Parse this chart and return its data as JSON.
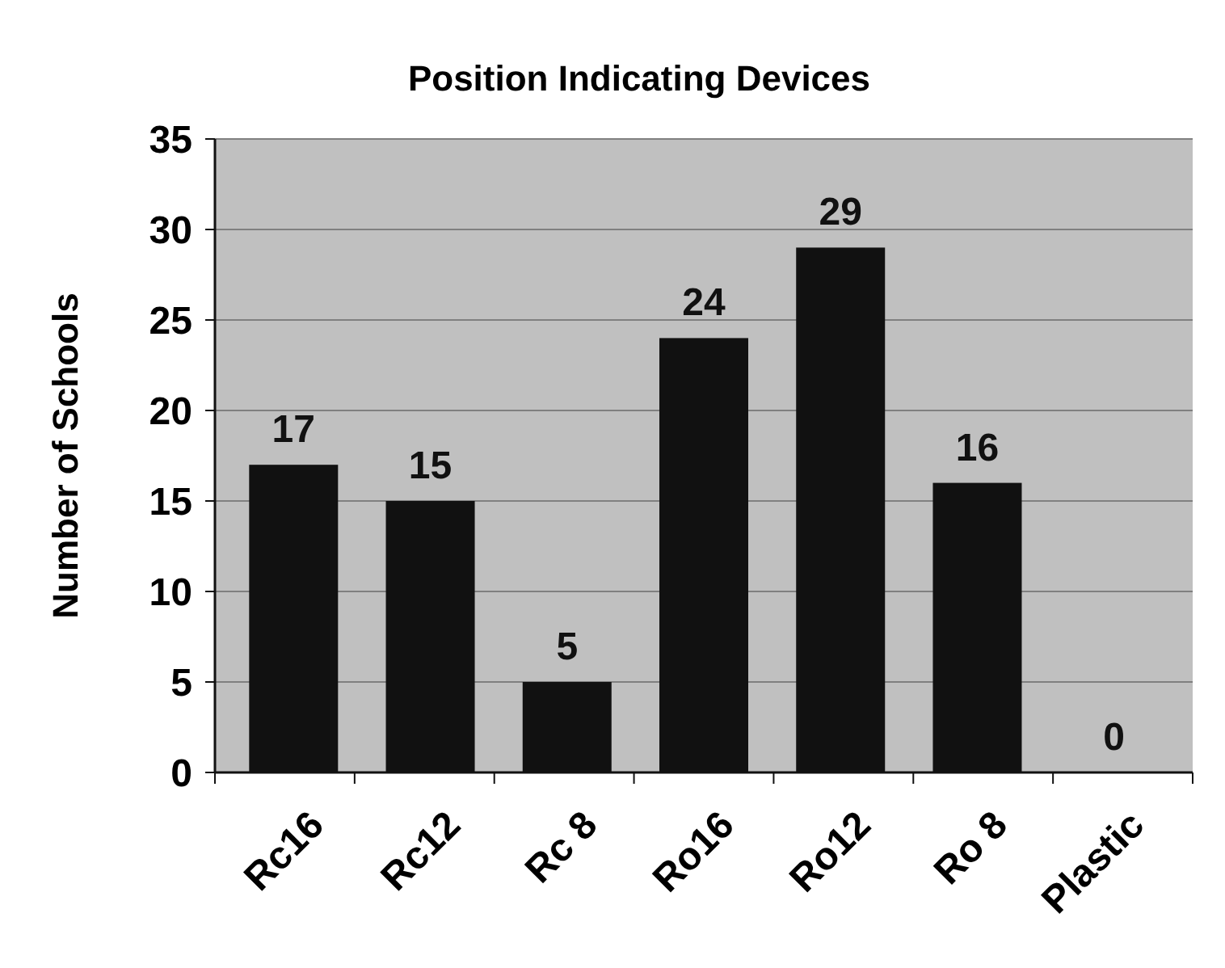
{
  "chart_data": {
    "type": "bar",
    "title": "Position Indicating Devices",
    "ylabel": "Number of Schools",
    "categories": [
      "Rc16",
      "Rc12",
      "Rc 8",
      "Ro16",
      "Ro12",
      "Ro 8",
      "Plastic"
    ],
    "values": [
      17,
      15,
      5,
      24,
      29,
      16,
      0
    ],
    "color": "#111111",
    "ylim": [
      0,
      35
    ],
    "yticks": [
      0,
      5,
      10,
      15,
      20,
      25,
      30,
      35
    ],
    "grid": "y",
    "data_labels": true
  }
}
